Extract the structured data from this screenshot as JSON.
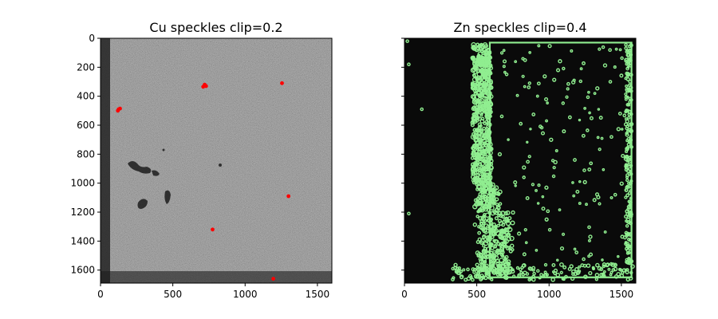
{
  "chart_data": [
    {
      "type": "image-scatter",
      "title": "Cu speckles clip=0.2",
      "xlim": [
        0,
        1600
      ],
      "ylim": [
        1690,
        0
      ],
      "xticks": [
        0,
        500,
        1000,
        1500
      ],
      "yticks": [
        0,
        200,
        400,
        600,
        800,
        1000,
        1200,
        1400,
        1600
      ],
      "background": "grayscale noise micrograph",
      "marker_color": "#ff0000",
      "points": [
        {
          "x": 720,
          "y": 320
        },
        {
          "x": 710,
          "y": 335
        },
        {
          "x": 730,
          "y": 330
        },
        {
          "x": 1255,
          "y": 310
        },
        {
          "x": 125,
          "y": 490
        },
        {
          "x": 120,
          "y": 500
        },
        {
          "x": 135,
          "y": 485
        },
        {
          "x": 1300,
          "y": 1090
        },
        {
          "x": 775,
          "y": 1320
        },
        {
          "x": 1195,
          "y": 1660
        }
      ]
    },
    {
      "type": "image-contour",
      "title": "Zn speckles clip=0.4",
      "xlim": [
        0,
        1600
      ],
      "ylim": [
        1690,
        0
      ],
      "xticks": [
        0,
        500,
        1000,
        1500
      ],
      "yticks": [
        0,
        200,
        400,
        600,
        800,
        1000,
        1200,
        1400,
        1600
      ],
      "background": "#0a0a0a",
      "contour_color": "#90ee90",
      "frame": {
        "x0": 590,
        "y0": 30,
        "x1": 1570,
        "y1": 1650
      }
    }
  ]
}
